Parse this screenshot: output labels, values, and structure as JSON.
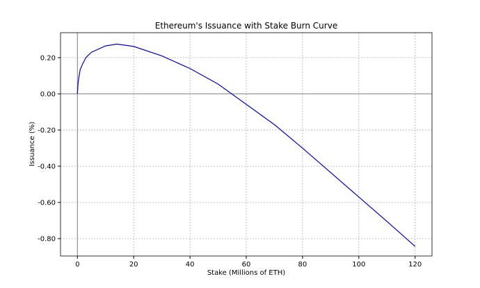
{
  "chart_data": {
    "type": "line",
    "title": "Ethereum's Issuance with Stake Burn Curve",
    "x_label": "Stake (Millions of ETH)",
    "y_label": "Issuance (%)",
    "x": [
      0,
      0.25,
      0.5,
      1,
      2,
      3,
      5,
      10,
      14,
      20,
      30,
      40,
      50,
      60,
      70,
      80,
      90,
      100,
      110,
      120
    ],
    "series": [
      {
        "name": "Issuance",
        "color": "#0000cc",
        "values": [
          0,
          0.06,
          0.09,
          0.135,
          0.17,
          0.2,
          0.23,
          0.265,
          0.275,
          0.262,
          0.21,
          0.14,
          0.054,
          -0.058,
          -0.17,
          -0.3,
          -0.435,
          -0.57,
          -0.705,
          -0.843
        ]
      }
    ],
    "xlim": [
      -6,
      126
    ],
    "ylim": [
      -0.896,
      0.338
    ],
    "xticks": [
      0,
      20,
      40,
      60,
      80,
      100,
      120
    ],
    "yticks": [
      {
        "value": 0.2,
        "label": "0.20"
      },
      {
        "value": 0,
        "label": "0.00"
      },
      {
        "value": -0.2,
        "label": "-0.20"
      },
      {
        "value": -0.4,
        "label": "-0.40"
      },
      {
        "value": -0.6,
        "label": "-0.60"
      },
      {
        "value": -0.8,
        "label": "-0.80"
      }
    ],
    "grid": true
  }
}
